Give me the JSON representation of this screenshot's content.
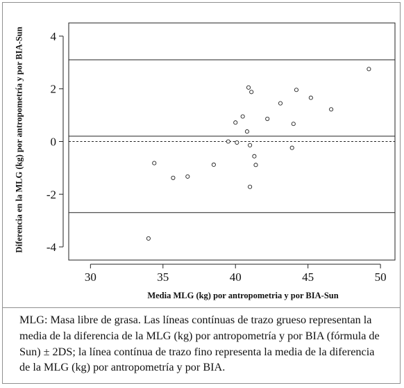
{
  "chart_data": {
    "type": "scatter",
    "xlabel": "Media MLG (kg) por antropometria y por BIA-Sun",
    "ylabel": "Diferencia en la MLG (kg) por antropometría y por BIA-Sun",
    "xlim": [
      28.5,
      51.0
    ],
    "ylim": [
      -4.5,
      4.5
    ],
    "xticks": [
      "30",
      "35",
      "40",
      "45",
      "50"
    ],
    "yticks": [
      "-4",
      "-2",
      "0",
      "2",
      "4"
    ],
    "grid": false,
    "points": [
      {
        "x": 34.0,
        "y": -3.68
      },
      {
        "x": 34.4,
        "y": -0.82
      },
      {
        "x": 35.7,
        "y": -1.38
      },
      {
        "x": 36.7,
        "y": -1.33
      },
      {
        "x": 38.5,
        "y": -0.88
      },
      {
        "x": 39.5,
        "y": 0.0
      },
      {
        "x": 40.1,
        "y": -0.04
      },
      {
        "x": 40.0,
        "y": 0.72
      },
      {
        "x": 40.5,
        "y": 0.95
      },
      {
        "x": 40.8,
        "y": 0.38
      },
      {
        "x": 40.9,
        "y": 2.05
      },
      {
        "x": 41.0,
        "y": -0.14
      },
      {
        "x": 41.1,
        "y": 1.88
      },
      {
        "x": 41.3,
        "y": -0.56
      },
      {
        "x": 41.4,
        "y": -0.89
      },
      {
        "x": 41.0,
        "y": -1.72
      },
      {
        "x": 42.2,
        "y": 0.86
      },
      {
        "x": 43.1,
        "y": 1.45
      },
      {
        "x": 43.9,
        "y": -0.24
      },
      {
        "x": 44.0,
        "y": 0.67
      },
      {
        "x": 44.2,
        "y": 1.96
      },
      {
        "x": 45.2,
        "y": 1.66
      },
      {
        "x": 46.6,
        "y": 1.22
      },
      {
        "x": 49.2,
        "y": 2.75
      }
    ],
    "reference_lines": [
      {
        "y": 3.1,
        "style": "solid"
      },
      {
        "y": 0.2,
        "style": "solid"
      },
      {
        "y": 0.0,
        "style": "dashed"
      },
      {
        "y": -2.7,
        "style": "solid"
      }
    ]
  },
  "caption": "MLG: Masa libre de grasa. Las líneas contínuas de trazo grueso representan la media de la diferencia de la MLG (kg) por antropometría y por BIA (fórmula de Sun) ± 2DS; la línea contínua de trazo fino representa la media de la diferencia de la MLG (kg) por antropometría y por BIA."
}
